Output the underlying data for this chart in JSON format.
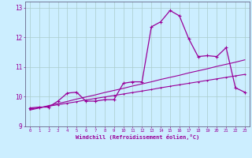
{
  "xlabel": "Windchill (Refroidissement éolien,°C)",
  "bg_color": "#cceeff",
  "line_color": "#990099",
  "grid_color": "#aacccc",
  "x_hours": [
    0,
    1,
    2,
    3,
    4,
    5,
    6,
    7,
    8,
    9,
    10,
    11,
    12,
    13,
    14,
    15,
    16,
    17,
    18,
    19,
    20,
    21,
    22,
    23
  ],
  "line_main": [
    9.62,
    9.65,
    9.65,
    9.85,
    10.12,
    10.15,
    9.85,
    9.85,
    9.9,
    9.9,
    10.45,
    10.5,
    10.5,
    12.35,
    12.52,
    12.9,
    12.72,
    11.95,
    11.35,
    11.38,
    11.35,
    11.65,
    10.3,
    10.15
  ],
  "line_trend1": [
    9.58,
    9.63,
    9.68,
    9.73,
    9.78,
    9.83,
    9.89,
    9.94,
    9.99,
    10.04,
    10.09,
    10.14,
    10.19,
    10.24,
    10.3,
    10.35,
    10.4,
    10.45,
    10.5,
    10.55,
    10.6,
    10.65,
    10.7,
    10.75
  ],
  "line_trend2": [
    9.55,
    9.62,
    9.7,
    9.77,
    9.84,
    9.92,
    9.99,
    10.06,
    10.14,
    10.21,
    10.28,
    10.36,
    10.43,
    10.5,
    10.58,
    10.65,
    10.72,
    10.8,
    10.87,
    10.94,
    11.02,
    11.09,
    11.16,
    11.24
  ],
  "ylim": [
    9.0,
    13.2
  ],
  "xlim": [
    -0.5,
    23.5
  ],
  "yticks": [
    9,
    10,
    11,
    12,
    13
  ]
}
